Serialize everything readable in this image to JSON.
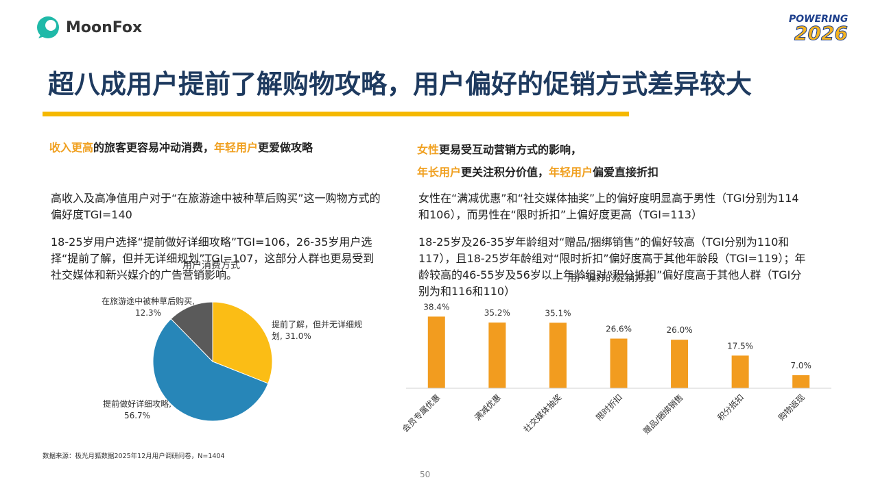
{
  "header": {
    "logo": "MoonFox",
    "badge_top": "POWERING",
    "badge_year": "2026",
    "title": "超八成用户提前了解购物攻略，用户偏好的促销方式差异较大"
  },
  "left": {
    "headline": [
      {
        "text": "收入更高",
        "color": "#f0a020"
      },
      {
        "text": "的旅客更容易冲动消费，",
        "color": "#222222"
      },
      {
        "text": "年轻用户",
        "color": "#f0a020"
      },
      {
        "text": "更爱做攻略",
        "color": "#222222"
      }
    ],
    "bullets": [
      "高收入及高净值用户对于“在旅游途中被种草后购买”这一购物方式的偏好度TGI=140",
      "18-25岁用户选择“提前做好详细攻略”TGI=106，26-35岁用户选择“提前了解，但并无详细规划”TGI=107，这部分人群也更易受到社交媒体和新兴媒介的广告营销影响。"
    ]
  },
  "right": {
    "headline": [
      [
        {
          "text": "女性",
          "color": "#f0a020"
        },
        {
          "text": "更易受互动营销方式的影响，",
          "color": "#222222"
        }
      ],
      [
        {
          "text": "年长用户",
          "color": "#f0a020"
        },
        {
          "text": "更关注积分价值，",
          "color": "#222222"
        },
        {
          "text": "年轻用户",
          "color": "#f0a020"
        },
        {
          "text": "偏爱直接折扣",
          "color": "#222222"
        }
      ]
    ],
    "bullets": [
      "女性在“满减优惠”和“社交媒体抽奖”上的偏好度明显高于男性（TGI分别为114和106），而男性在“限时折扣”上偏好度更高（TGI=113）",
      "18-25岁及26-35岁年龄组对“赠品/捆绑销售”的偏好较高（TGI分别为110和117），且18-25岁年龄组对“限时折扣”偏好度高于其他年龄段（TGI=119）；年龄较高的46-55岁及56岁以上年龄组对“积分抵扣”偏好度高于其他人群（TGI分别为和116和110）"
    ]
  },
  "chart_data": [
    {
      "type": "pie",
      "title": "用户消费方式",
      "values": [
        31.0,
        56.7,
        12.3
      ],
      "value_labels": [
        "提前了解，但并无详细规划, 31.0%",
        "提前做好详细攻略, 56.7%",
        "在旅游途中被种草后购买, 12.3%"
      ],
      "colors": [
        "#fbbd15",
        "#2786b8",
        "#5a5a5a"
      ]
    },
    {
      "type": "bar",
      "title": "用户偏好的促销方式",
      "categories": [
        "会员专属优惠",
        "满减优惠",
        "社交媒体抽奖",
        "限时折扣",
        "赠品/捆绑销售",
        "积分抵扣",
        "购物返现"
      ],
      "values": [
        38.4,
        35.2,
        35.1,
        26.6,
        26.0,
        17.5,
        7.0
      ],
      "value_labels": [
        "38.4%",
        "35.2%",
        "35.1%",
        "26.6%",
        "26.0%",
        "17.5%",
        "7.0%"
      ],
      "color": "#f29c1f",
      "ylim": [
        0,
        40
      ]
    }
  ],
  "footer": {
    "source": "数据来源：极光月狐数据2025年12月用户调研问卷，N=1404",
    "page": 50
  }
}
